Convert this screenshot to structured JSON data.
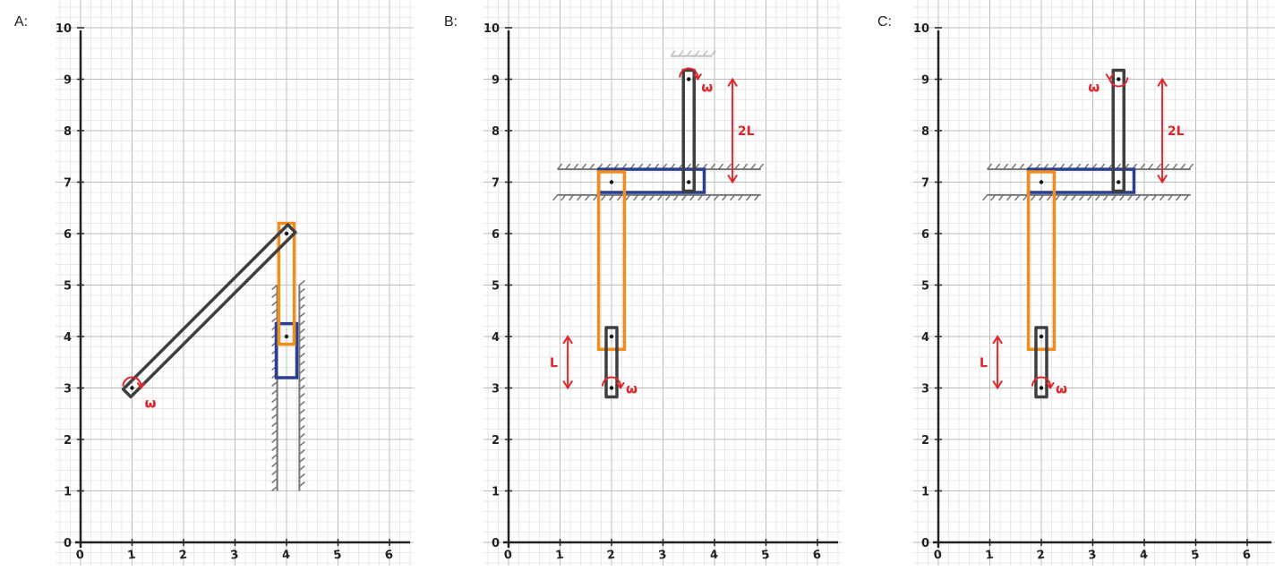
{
  "panels": [
    {
      "id": "A",
      "label": "A:",
      "x_ticks": [
        "0",
        "1",
        "2",
        "3",
        "4",
        "5",
        "6"
      ],
      "y_ticks": [
        "0",
        "1",
        "2",
        "3",
        "4",
        "5",
        "6",
        "7",
        "8",
        "9",
        "10"
      ],
      "omega_labels": [
        "ω"
      ],
      "length_labels": []
    },
    {
      "id": "B",
      "label": "B:",
      "x_ticks": [
        "0",
        "1",
        "2",
        "3",
        "4",
        "5",
        "6"
      ],
      "y_ticks": [
        "0",
        "1",
        "2",
        "3",
        "4",
        "5",
        "6",
        "7",
        "8",
        "9",
        "10"
      ],
      "omega_labels": [
        "ω",
        "ω"
      ],
      "length_labels": [
        "2L",
        "L"
      ]
    },
    {
      "id": "C",
      "label": "C:",
      "x_ticks": [
        "0",
        "1",
        "2",
        "3",
        "4",
        "5",
        "6"
      ],
      "y_ticks": [
        "0",
        "1",
        "2",
        "3",
        "4",
        "5",
        "6",
        "7",
        "8",
        "9",
        "10"
      ],
      "omega_labels": [
        "ω",
        "ω"
      ],
      "length_labels": [
        "2L",
        "L"
      ]
    }
  ],
  "colors": {
    "link": "#3f3f3f",
    "coupler": "#f28c1c",
    "slider": "#2a3f8f",
    "annotation": "#e3262b",
    "wall": "#777777",
    "grid_minor": "#e2e2e2",
    "grid_major": "#bdbdbd",
    "axis": "#222222"
  }
}
